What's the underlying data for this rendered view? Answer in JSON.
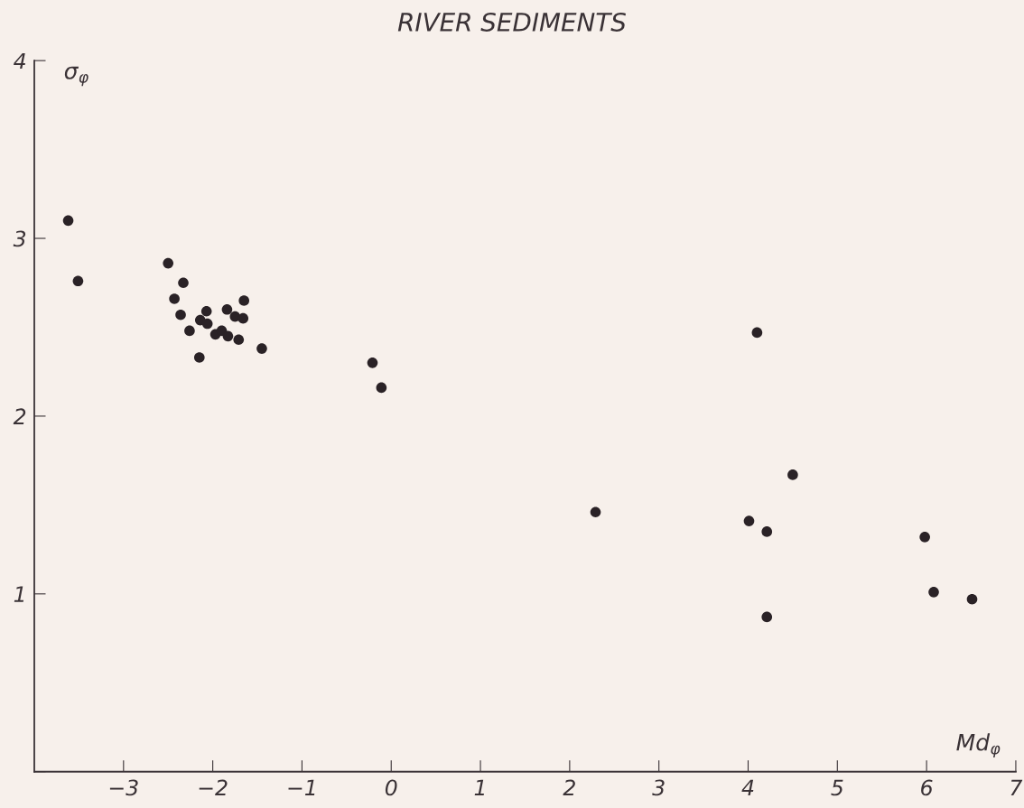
{
  "chart_data": {
    "type": "scatter",
    "title": "RIVER SEDIMENTS",
    "xlabel": "Md$_{φ}$",
    "ylabel": "σ$_{φ}$",
    "series": [
      {
        "color": "#2a2226",
        "x": [
          -3.62,
          -3.51,
          -2.5,
          -2.33,
          -2.43,
          -2.36,
          -2.07,
          -1.84,
          -1.65,
          -2.14,
          -2.06,
          -2.26,
          -1.75,
          -1.66,
          -1.97,
          -1.9,
          -1.83,
          -1.71,
          -1.45,
          -2.15,
          -0.21,
          -0.11,
          4.1,
          4.5,
          2.29,
          4.01,
          4.21,
          5.98,
          6.08,
          6.51,
          4.21
        ],
        "values": [
          3.1,
          2.76,
          2.86,
          2.75,
          2.66,
          2.57,
          2.59,
          2.6,
          2.65,
          2.54,
          2.52,
          2.48,
          2.56,
          2.55,
          2.46,
          2.48,
          2.45,
          2.43,
          2.38,
          2.33,
          2.3,
          2.16,
          2.47,
          1.67,
          1.46,
          1.41,
          1.35,
          1.32,
          1.01,
          0.97,
          0.87
        ]
      }
    ],
    "xlim": [
      -4,
      7
    ],
    "ylim": [
      0,
      4
    ],
    "xticks": [
      -3,
      -2,
      -1,
      0,
      1,
      2,
      3,
      4,
      5,
      6,
      7
    ],
    "yticks": [
      {
        "value": 0,
        "label": null
      },
      1,
      2,
      3,
      4
    ],
    "marker": "circle",
    "grid": false,
    "legend": false
  }
}
